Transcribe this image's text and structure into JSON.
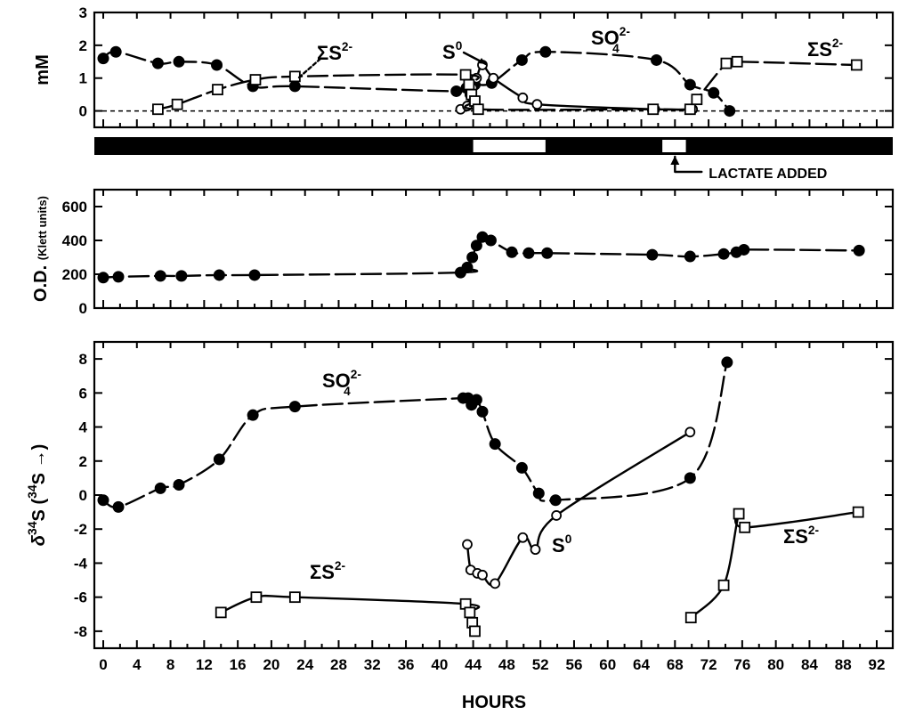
{
  "x_axis": {
    "label": "HOURS",
    "ticks": [
      0,
      4,
      8,
      12,
      16,
      20,
      24,
      28,
      32,
      36,
      40,
      44,
      48,
      52,
      56,
      60,
      64,
      68,
      72,
      76,
      80,
      84,
      88,
      92
    ],
    "minor_ticks": [
      2,
      6,
      10,
      14,
      18,
      22,
      26,
      30,
      34,
      38,
      42,
      46,
      50,
      54,
      58,
      62,
      66,
      70,
      74,
      78,
      82,
      86,
      90
    ]
  },
  "light_bar": {
    "light_periods_hours": [
      [
        44,
        52.6
      ],
      [
        66.5,
        69.3
      ]
    ],
    "annotation": "LACTATE ADDED",
    "annotation_hour": 68
  },
  "chart_data": [
    {
      "type": "line",
      "panel": "concentration",
      "ylabel": "mM",
      "ylim": [
        -0.5,
        3
      ],
      "yticks": [
        0,
        1,
        2,
        3
      ],
      "zero_reference": "dashed",
      "series": [
        {
          "name": "SO42-",
          "label_text": "SO",
          "label_sub": "4",
          "label_sup": "2-",
          "marker": "filled-circle",
          "x": [
            0,
            1.5,
            6.5,
            9,
            13.5,
            17.8,
            22.8,
            42,
            43.2,
            44.2,
            46.2,
            49.8,
            52.6,
            65.8,
            69.8,
            72.6,
            74.5
          ],
          "y": [
            1.6,
            1.8,
            1.45,
            1.5,
            1.4,
            0.75,
            0.75,
            0.6,
            0.7,
            0.8,
            0.85,
            1.55,
            1.8,
            1.55,
            0.8,
            0.55,
            0
          ]
        },
        {
          "name": "S0",
          "label_text": "S",
          "label_sup": "0",
          "marker": "open-circle",
          "x": [
            42.5,
            43.3,
            43.6,
            43.9,
            44.4,
            45.1,
            46.4,
            49.9,
            51.6,
            65.6,
            70.1
          ],
          "y": [
            0.05,
            0.15,
            0.5,
            0.7,
            1.0,
            1.4,
            1.0,
            0.4,
            0.2,
            0.05,
            0.05
          ]
        },
        {
          "name": "ΣS2-",
          "label_text": "ΣS",
          "label_sup": "2-",
          "marker": "open-square",
          "x": [
            6.5,
            8.8,
            13.6,
            18.1,
            22.8,
            43.1,
            43.5,
            43.8,
            44.2,
            44.6,
            65.4,
            69.8,
            70.6,
            74.1,
            75.4,
            89.6
          ],
          "y": [
            0.05,
            0.2,
            0.65,
            0.95,
            1.05,
            1.1,
            0.8,
            0.5,
            0.3,
            0.05,
            0.05,
            0.05,
            0.35,
            1.45,
            1.5,
            1.4
          ]
        }
      ]
    },
    {
      "type": "line",
      "panel": "optical-density",
      "ylabel": "O.D.",
      "ylabel_units": "(Klett units)",
      "ylim": [
        0,
        700
      ],
      "yticks": [
        0,
        200,
        400,
        600
      ],
      "series": [
        {
          "name": "O.D.",
          "marker": "filled-circle",
          "x": [
            0,
            1.8,
            6.8,
            9.3,
            13.8,
            18,
            42.5,
            43.3,
            43.9,
            44.4,
            45.1,
            46.1,
            48.6,
            50.6,
            52.8,
            65.3,
            69.8,
            73.8,
            75.3,
            76.2,
            89.9
          ],
          "y": [
            180,
            185,
            190,
            190,
            195,
            195,
            210,
            240,
            300,
            370,
            420,
            400,
            330,
            325,
            325,
            315,
            305,
            320,
            330,
            345,
            340
          ]
        }
      ]
    },
    {
      "type": "line",
      "panel": "isotope",
      "ylabel": "δ34S",
      "ylabel_text": "δ",
      "ylabel_sup": "34",
      "ylabel_rest": "S (",
      "ylabel_sup2": "34",
      "ylabel_end": "S →)",
      "ylim": [
        -9,
        9
      ],
      "yticks": [
        -8,
        -6,
        -4,
        -2,
        0,
        2,
        4,
        6,
        8
      ],
      "series": [
        {
          "name": "SO42-",
          "label_text": "SO",
          "label_sub": "4",
          "label_sup": "2-",
          "marker": "filled-circle",
          "x": [
            0,
            1.8,
            6.8,
            9,
            13.8,
            17.8,
            22.8,
            42.8,
            43.4,
            43.8,
            44.4,
            45.1,
            46.6,
            49.8,
            51.8,
            53.8,
            69.8,
            74.2
          ],
          "y": [
            -0.3,
            -0.7,
            0.4,
            0.6,
            2.1,
            4.7,
            5.2,
            5.7,
            5.7,
            5.3,
            5.6,
            4.9,
            3.0,
            1.6,
            0.1,
            -0.3,
            1.0,
            7.8
          ]
        },
        {
          "name": "S0",
          "label_text": "S",
          "label_sup": "0",
          "marker": "open-circle",
          "x": [
            43.3,
            43.7,
            44.5,
            45.1,
            46.6,
            49.9,
            51.4,
            53.9,
            69.8
          ],
          "y": [
            -2.9,
            -4.4,
            -4.6,
            -4.7,
            -5.2,
            -2.5,
            -3.2,
            -1.2,
            3.7
          ]
        },
        {
          "name": "ΣS2-",
          "label_text": "ΣS",
          "label_sup": "2-",
          "marker": "open-square",
          "x": [
            14.0,
            18.2,
            22.8,
            43.1,
            43.6,
            43.9,
            44.2,
            69.9,
            73.8,
            75.6,
            76.3,
            89.8
          ],
          "y": [
            -6.9,
            -6.0,
            -6.0,
            -6.4,
            -6.9,
            -7.5,
            -8.0,
            -7.2,
            -5.3,
            -1.1,
            -1.9,
            -1.0
          ]
        }
      ]
    }
  ],
  "icons": {
    "lactate": "arrow-up-icon"
  }
}
